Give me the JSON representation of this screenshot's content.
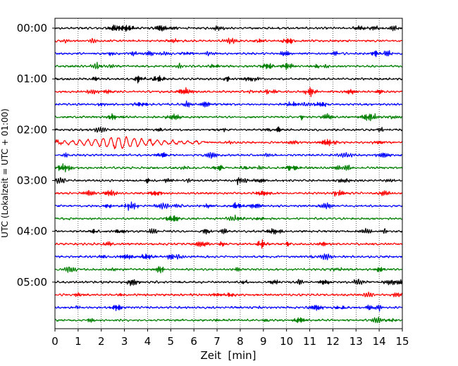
{
  "chart_data": {
    "type": "line",
    "xlabel": "Zeit  [min]",
    "ylabel": "UTC (Lokalzeit = UTC + 01:00)",
    "xlim": [
      0,
      15
    ],
    "x_ticks": [
      "0",
      "1",
      "2",
      "3",
      "4",
      "5",
      "6",
      "7",
      "8",
      "9",
      "10",
      "11",
      "12",
      "13",
      "14",
      "15"
    ],
    "y_ticks": [
      "00:00",
      "01:00",
      "02:00",
      "03:00",
      "04:00",
      "05:00"
    ],
    "trace_interval_minutes": 15,
    "trace_count": 24,
    "trace_colors": [
      "#000000",
      "#ff0000",
      "#0000ff",
      "#008000"
    ],
    "vertical_grid": true,
    "grid_style": "dotted",
    "event": {
      "trace_index": 9,
      "x_start": 0,
      "x_peak": 2.8,
      "x_end": 6.5
    }
  }
}
